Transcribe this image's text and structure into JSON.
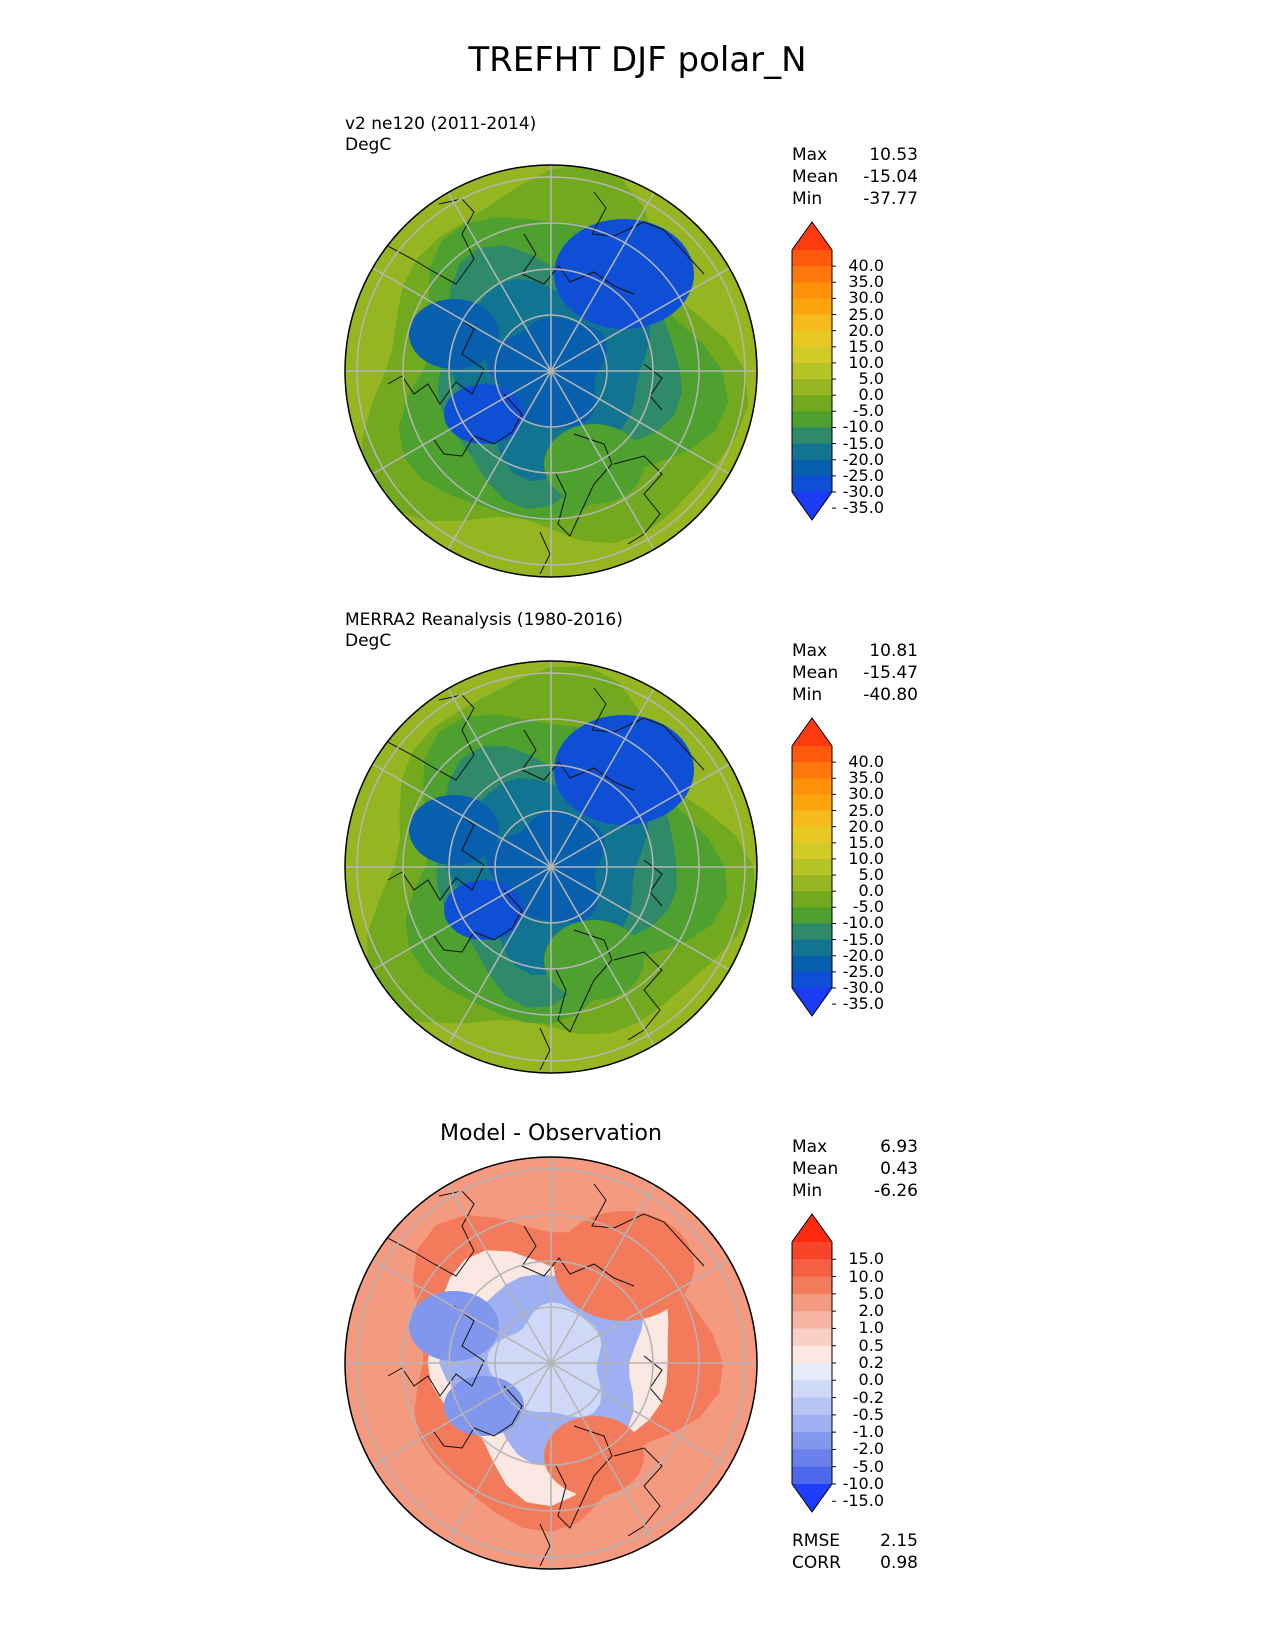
{
  "title": "TREFHT DJF polar_N",
  "chart_data": [
    {
      "type": "heatmap",
      "projection": "north-polar-stereographic",
      "title": "v2 ne120 (2011-2014)",
      "units": "DegC",
      "stats": {
        "max": "10.53",
        "mean": "-15.04",
        "min": "-37.77"
      },
      "colorbar": {
        "ticks": [
          "40.0",
          "35.0",
          "30.0",
          "25.0",
          "20.0",
          "15.0",
          "10.0",
          "5.0",
          "0.0",
          "-5.0",
          "-10.0",
          "-15.0",
          "-20.0",
          "-25.0",
          "-30.0",
          "-35.0"
        ],
        "colors": [
          "#ff3a0e",
          "#ff5a0c",
          "#ff760a",
          "#ff9009",
          "#fca40c",
          "#f6bb1a",
          "#e8c923",
          "#d2cb27",
          "#b6c324",
          "#95b620",
          "#73a91f",
          "#4ea12e",
          "#2e8a69",
          "#117591",
          "#075fae",
          "#0f4fd6",
          "#1b3cf6"
        ]
      },
      "field_levels": {
        "pole": -27,
        "arctic_ocean": -24,
        "siberia": -30,
        "canada_arch": -32,
        "subarctic": -12,
        "midlat": 0
      }
    },
    {
      "type": "heatmap",
      "projection": "north-polar-stereographic",
      "title": "MERRA2 Reanalysis (1980-2016)",
      "units": "DegC",
      "stats": {
        "max": "10.81",
        "mean": "-15.47",
        "min": "-40.80"
      },
      "colorbar": {
        "ticks": [
          "40.0",
          "35.0",
          "30.0",
          "25.0",
          "20.0",
          "15.0",
          "10.0",
          "5.0",
          "0.0",
          "-5.0",
          "-10.0",
          "-15.0",
          "-20.0",
          "-25.0",
          "-30.0",
          "-35.0"
        ],
        "colors": [
          "#ff3a0e",
          "#ff5a0c",
          "#ff760a",
          "#ff9009",
          "#fca40c",
          "#f6bb1a",
          "#e8c923",
          "#d2cb27",
          "#b6c324",
          "#95b620",
          "#73a91f",
          "#4ea12e",
          "#2e8a69",
          "#117591",
          "#075fae",
          "#0f4fd6",
          "#1b3cf6"
        ]
      },
      "field_levels": {
        "pole": -25,
        "arctic_ocean": -22,
        "siberia": -33,
        "canada_arch": -31,
        "subarctic": -12,
        "midlat": 0
      }
    },
    {
      "type": "heatmap",
      "projection": "north-polar-stereographic",
      "title": "Model - Observation",
      "units": "",
      "stats": {
        "max": "6.93",
        "mean": "0.43",
        "min": "-6.26"
      },
      "extra_stats": {
        "rmse": "2.15",
        "corr": "0.98"
      },
      "colorbar": {
        "ticks": [
          "15.0",
          "10.0",
          "5.0",
          "2.0",
          "1.0",
          "0.5",
          "0.2",
          "0.0",
          "-0.2",
          "-0.5",
          "-1.0",
          "-2.0",
          "-5.0",
          "-10.0",
          "-15.0"
        ],
        "colors": [
          "#ff2a10",
          "#f8452a",
          "#f55f42",
          "#f37b5c",
          "#f49a80",
          "#f6b3a1",
          "#f9cfc4",
          "#fbe8e2",
          "#e8ecfa",
          "#cfd9f7",
          "#b6c5f4",
          "#9eb0f1",
          "#8197ed",
          "#6a80ea",
          "#4e68ec",
          "#1c3efc"
        ]
      },
      "field_levels": {
        "pole": -0.5,
        "arctic_ocean": -2,
        "siberia": 3,
        "canada_arch": -3,
        "subarctic": 2,
        "midlat": 1
      }
    }
  ],
  "labels": {
    "max": "Max",
    "mean": "Mean",
    "min": "Min",
    "rmse": "RMSE",
    "corr": "CORR"
  }
}
